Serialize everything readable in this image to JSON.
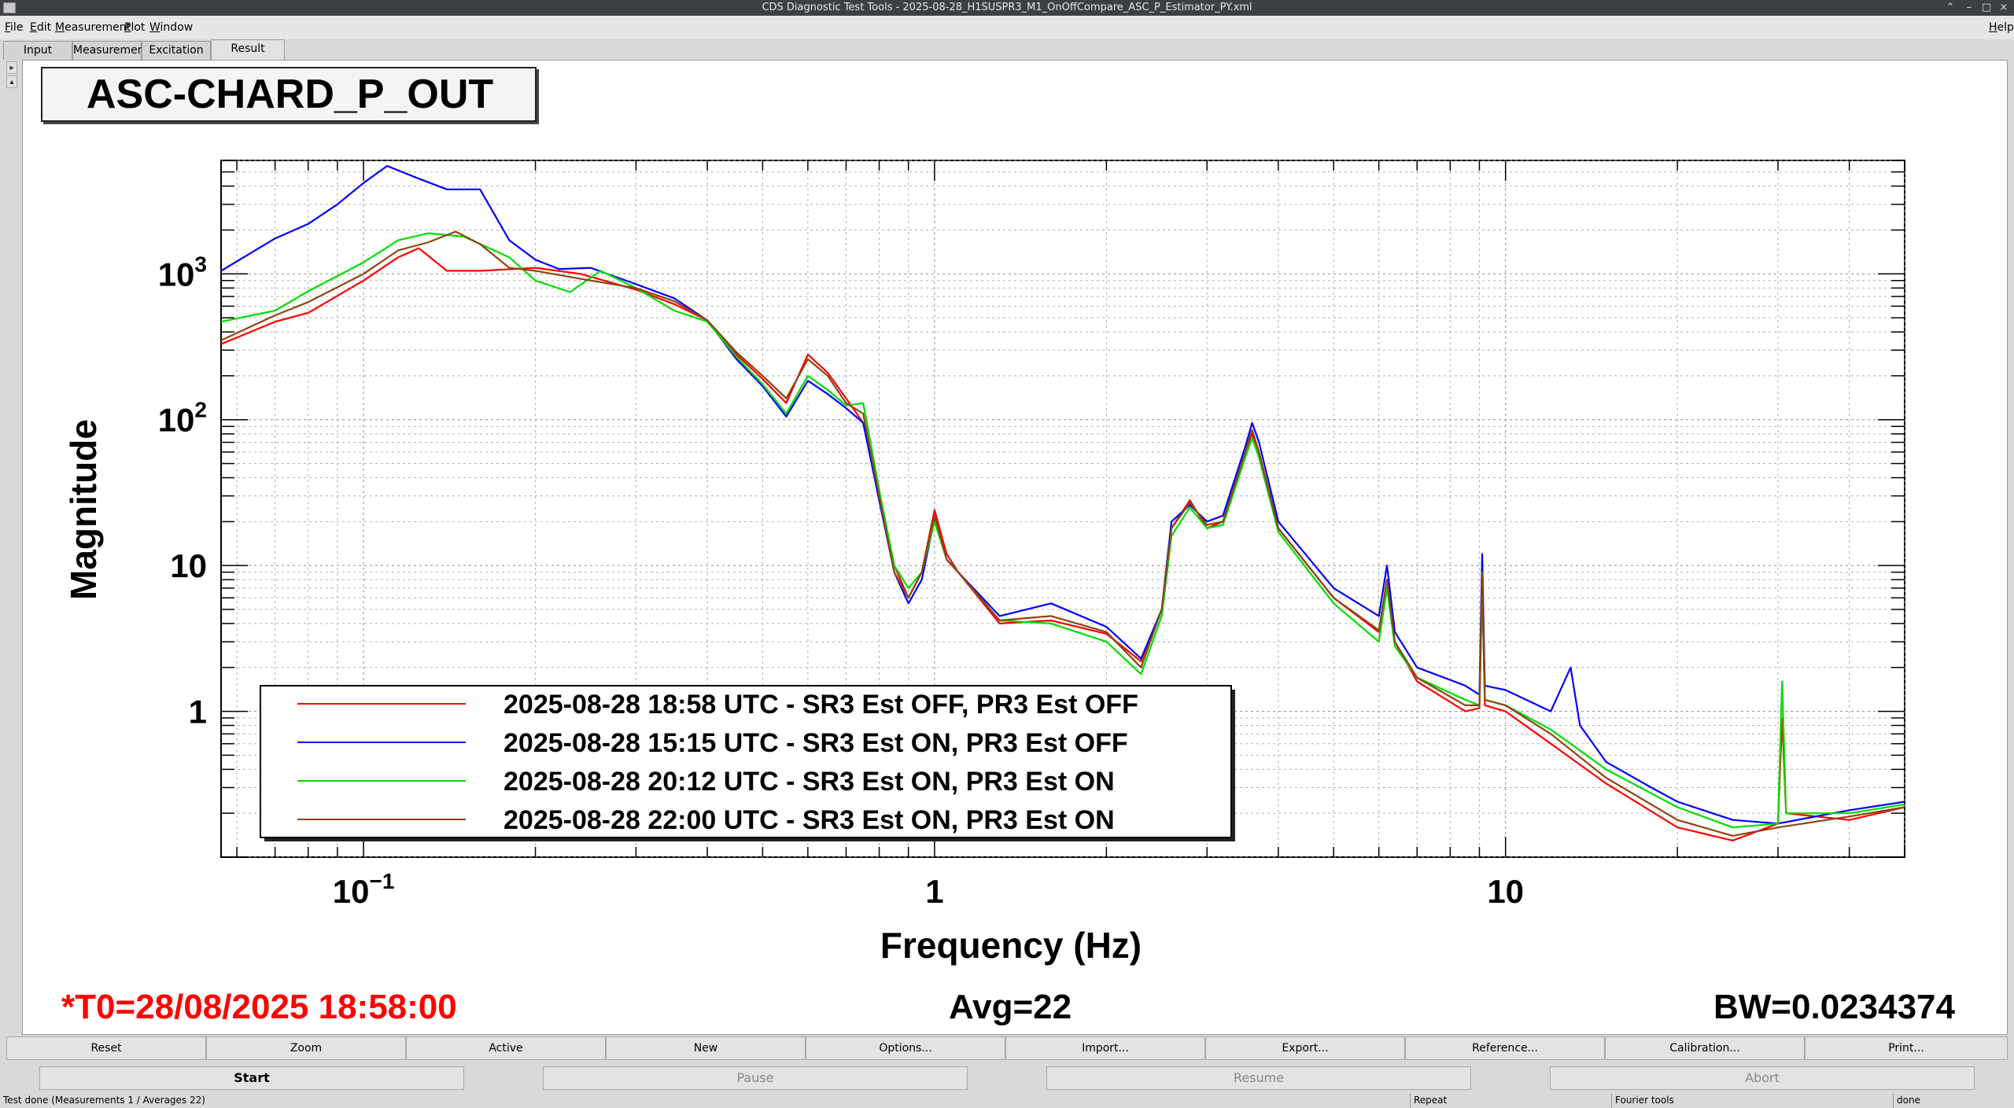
{
  "window": {
    "title": "CDS Diagnostic Test Tools - 2025-08-28_H1SUSPR3_M1_OnOffCompare_ASC_P_Estimator_PY.xml",
    "minimize": "–",
    "maximize": "□",
    "close": "×"
  },
  "menu": {
    "file": "File",
    "edit": "Edit",
    "measurement": "Measurement",
    "plot": "Plot",
    "window": "Window",
    "help": "Help"
  },
  "tabs": [
    "Input",
    "Measurement",
    "Excitation",
    "Result"
  ],
  "active_tab": "Result",
  "plot_title": "ASC-CHARD_P_OUT",
  "chart_data": {
    "type": "line",
    "xscale": "log",
    "yscale": "log",
    "xlabel": "Frequency (Hz)",
    "ylabel": "Magnitude",
    "xlim": [
      0.0563,
      50
    ],
    "ylim": [
      0.1,
      6000
    ],
    "x_ticks": [
      {
        "value": 0.1,
        "label": "10",
        "sup": "−1"
      },
      {
        "value": 1,
        "label": "1",
        "sup": ""
      },
      {
        "value": 10,
        "label": "10",
        "sup": ""
      }
    ],
    "y_ticks": [
      {
        "value": 1,
        "label": "1",
        "sup": ""
      },
      {
        "value": 10,
        "label": "10",
        "sup": ""
      },
      {
        "value": 100,
        "label": "10",
        "sup": "2"
      },
      {
        "value": 1000,
        "label": "10",
        "sup": "3"
      }
    ],
    "grid": true,
    "legend_position": "bottom-left",
    "series": [
      {
        "name": "2025-08-28 18:58 UTC - SR3 Est OFF, PR3 Est OFF",
        "color": "#ff0000",
        "points": [
          [
            0.0563,
            330
          ],
          [
            0.07,
            470
          ],
          [
            0.08,
            540
          ],
          [
            0.1,
            900
          ],
          [
            0.115,
            1300
          ],
          [
            0.125,
            1500
          ],
          [
            0.14,
            1050
          ],
          [
            0.16,
            1050
          ],
          [
            0.2,
            1100
          ],
          [
            0.24,
            1000
          ],
          [
            0.3,
            780
          ],
          [
            0.35,
            620
          ],
          [
            0.4,
            480
          ],
          [
            0.45,
            280
          ],
          [
            0.5,
            190
          ],
          [
            0.55,
            130
          ],
          [
            0.6,
            280
          ],
          [
            0.65,
            210
          ],
          [
            0.7,
            140
          ],
          [
            0.75,
            95
          ],
          [
            0.8,
            30
          ],
          [
            0.85,
            10
          ],
          [
            0.9,
            6
          ],
          [
            0.95,
            9
          ],
          [
            1.0,
            24
          ],
          [
            1.05,
            12
          ],
          [
            1.1,
            9
          ],
          [
            1.3,
            4.0
          ],
          [
            1.6,
            4.2
          ],
          [
            2.0,
            3.4
          ],
          [
            2.3,
            2.2
          ],
          [
            2.5,
            5
          ],
          [
            2.6,
            18
          ],
          [
            2.8,
            28
          ],
          [
            3.0,
            18
          ],
          [
            3.2,
            20
          ],
          [
            3.5,
            60
          ],
          [
            3.6,
            80
          ],
          [
            3.7,
            60
          ],
          [
            4.0,
            18
          ],
          [
            5.0,
            6
          ],
          [
            6.0,
            3.5
          ],
          [
            6.2,
            7
          ],
          [
            6.4,
            3
          ],
          [
            7.0,
            1.6
          ],
          [
            8.5,
            1.0
          ],
          [
            9.0,
            1.05
          ],
          [
            9.1,
            8
          ],
          [
            9.2,
            1.1
          ],
          [
            10,
            1.0
          ],
          [
            12,
            0.6
          ],
          [
            15,
            0.32
          ],
          [
            20,
            0.16
          ],
          [
            25,
            0.13
          ],
          [
            30,
            0.17
          ],
          [
            30.5,
            0.9
          ],
          [
            31,
            0.2
          ],
          [
            40,
            0.18
          ],
          [
            50,
            0.22
          ]
        ]
      },
      {
        "name": "2025-08-28 15:15 UTC - SR3 Est ON, PR3 Est OFF",
        "color": "#0000ff",
        "points": [
          [
            0.0563,
            1050
          ],
          [
            0.07,
            1750
          ],
          [
            0.08,
            2200
          ],
          [
            0.09,
            3000
          ],
          [
            0.1,
            4200
          ],
          [
            0.11,
            5500
          ],
          [
            0.125,
            4500
          ],
          [
            0.14,
            3800
          ],
          [
            0.16,
            3800
          ],
          [
            0.18,
            1700
          ],
          [
            0.2,
            1250
          ],
          [
            0.22,
            1080
          ],
          [
            0.25,
            1100
          ],
          [
            0.3,
            850
          ],
          [
            0.35,
            680
          ],
          [
            0.4,
            480
          ],
          [
            0.45,
            260
          ],
          [
            0.5,
            170
          ],
          [
            0.55,
            105
          ],
          [
            0.6,
            185
          ],
          [
            0.65,
            150
          ],
          [
            0.7,
            120
          ],
          [
            0.75,
            95
          ],
          [
            0.8,
            28
          ],
          [
            0.85,
            9
          ],
          [
            0.9,
            5.5
          ],
          [
            0.95,
            8
          ],
          [
            1.0,
            21
          ],
          [
            1.05,
            11
          ],
          [
            1.1,
            9
          ],
          [
            1.3,
            4.5
          ],
          [
            1.6,
            5.5
          ],
          [
            2.0,
            3.8
          ],
          [
            2.3,
            2.3
          ],
          [
            2.5,
            5
          ],
          [
            2.6,
            20
          ],
          [
            2.8,
            26
          ],
          [
            3.0,
            20
          ],
          [
            3.2,
            22
          ],
          [
            3.5,
            65
          ],
          [
            3.6,
            95
          ],
          [
            3.7,
            70
          ],
          [
            4.0,
            20
          ],
          [
            5.0,
            7
          ],
          [
            6.0,
            4.5
          ],
          [
            6.2,
            10
          ],
          [
            6.4,
            3.5
          ],
          [
            7.0,
            2.0
          ],
          [
            8.5,
            1.5
          ],
          [
            9.0,
            1.3
          ],
          [
            9.1,
            12
          ],
          [
            9.2,
            1.5
          ],
          [
            10,
            1.4
          ],
          [
            12,
            1.0
          ],
          [
            13,
            2
          ],
          [
            13.5,
            0.8
          ],
          [
            15,
            0.45
          ],
          [
            18,
            0.3
          ],
          [
            20,
            0.24
          ],
          [
            25,
            0.18
          ],
          [
            30,
            0.17
          ],
          [
            40,
            0.21
          ],
          [
            50,
            0.24
          ]
        ]
      },
      {
        "name": "2025-08-28 20:12 UTC - SR3 Est ON, PR3 Est ON",
        "color": "#00dd00",
        "points": [
          [
            0.0563,
            470
          ],
          [
            0.07,
            560
          ],
          [
            0.08,
            760
          ],
          [
            0.1,
            1200
          ],
          [
            0.115,
            1700
          ],
          [
            0.13,
            1900
          ],
          [
            0.15,
            1800
          ],
          [
            0.18,
            1300
          ],
          [
            0.2,
            900
          ],
          [
            0.23,
            750
          ],
          [
            0.26,
            1050
          ],
          [
            0.3,
            800
          ],
          [
            0.35,
            560
          ],
          [
            0.4,
            470
          ],
          [
            0.45,
            270
          ],
          [
            0.5,
            175
          ],
          [
            0.55,
            110
          ],
          [
            0.6,
            200
          ],
          [
            0.65,
            160
          ],
          [
            0.7,
            125
          ],
          [
            0.75,
            130
          ],
          [
            0.8,
            33
          ],
          [
            0.85,
            10
          ],
          [
            0.9,
            7
          ],
          [
            0.95,
            9
          ],
          [
            1.0,
            20
          ],
          [
            1.05,
            11
          ],
          [
            1.1,
            9
          ],
          [
            1.3,
            4.2
          ],
          [
            1.6,
            4.0
          ],
          [
            2.0,
            3.0
          ],
          [
            2.3,
            1.8
          ],
          [
            2.5,
            4.5
          ],
          [
            2.6,
            16
          ],
          [
            2.8,
            25
          ],
          [
            3.0,
            18
          ],
          [
            3.2,
            19
          ],
          [
            3.5,
            55
          ],
          [
            3.6,
            75
          ],
          [
            3.7,
            55
          ],
          [
            4.0,
            17
          ],
          [
            5.0,
            5.5
          ],
          [
            6.0,
            3.0
          ],
          [
            6.2,
            7
          ],
          [
            6.4,
            2.8
          ],
          [
            7.0,
            1.7
          ],
          [
            8.5,
            1.2
          ],
          [
            9.0,
            1.1
          ],
          [
            9.1,
            7
          ],
          [
            9.2,
            1.2
          ],
          [
            10,
            1.1
          ],
          [
            12,
            0.75
          ],
          [
            15,
            0.4
          ],
          [
            20,
            0.22
          ],
          [
            25,
            0.16
          ],
          [
            30,
            0.17
          ],
          [
            30.5,
            1.6
          ],
          [
            31,
            0.2
          ],
          [
            40,
            0.2
          ],
          [
            50,
            0.23
          ]
        ]
      },
      {
        "name": "2025-08-28 22:00 UTC - SR3 Est ON, PR3 Est ON",
        "color": "#8b4513",
        "points": [
          [
            0.0563,
            350
          ],
          [
            0.07,
            520
          ],
          [
            0.08,
            640
          ],
          [
            0.1,
            1000
          ],
          [
            0.115,
            1450
          ],
          [
            0.13,
            1650
          ],
          [
            0.145,
            1950
          ],
          [
            0.16,
            1600
          ],
          [
            0.18,
            1100
          ],
          [
            0.2,
            1050
          ],
          [
            0.25,
            900
          ],
          [
            0.3,
            800
          ],
          [
            0.35,
            650
          ],
          [
            0.4,
            480
          ],
          [
            0.45,
            290
          ],
          [
            0.5,
            200
          ],
          [
            0.55,
            140
          ],
          [
            0.6,
            260
          ],
          [
            0.65,
            200
          ],
          [
            0.7,
            130
          ],
          [
            0.75,
            110
          ],
          [
            0.8,
            30
          ],
          [
            0.85,
            9
          ],
          [
            0.9,
            6
          ],
          [
            0.95,
            9
          ],
          [
            1.0,
            22
          ],
          [
            1.05,
            11
          ],
          [
            1.1,
            9
          ],
          [
            1.3,
            4.2
          ],
          [
            1.6,
            4.5
          ],
          [
            2.0,
            3.5
          ],
          [
            2.3,
            2.0
          ],
          [
            2.5,
            5
          ],
          [
            2.6,
            18
          ],
          [
            2.8,
            27
          ],
          [
            3.0,
            19
          ],
          [
            3.2,
            20
          ],
          [
            3.5,
            60
          ],
          [
            3.6,
            85
          ],
          [
            3.7,
            60
          ],
          [
            4.0,
            18
          ],
          [
            5.0,
            6
          ],
          [
            6.0,
            3.6
          ],
          [
            6.2,
            8
          ],
          [
            6.4,
            3.0
          ],
          [
            7.0,
            1.7
          ],
          [
            8.5,
            1.1
          ],
          [
            9.0,
            1.1
          ],
          [
            9.1,
            9
          ],
          [
            9.2,
            1.2
          ],
          [
            10,
            1.1
          ],
          [
            12,
            0.7
          ],
          [
            15,
            0.35
          ],
          [
            20,
            0.18
          ],
          [
            25,
            0.14
          ],
          [
            30,
            0.16
          ],
          [
            40,
            0.19
          ],
          [
            50,
            0.22
          ]
        ]
      }
    ]
  },
  "info": {
    "t0": "*T0=28/08/2025 18:58:00",
    "avg": "Avg=22",
    "bw": "BW=0.0234374"
  },
  "buttons": [
    "Reset",
    "Zoom",
    "Active",
    "New",
    "Options...",
    "Import...",
    "Export...",
    "Reference...",
    "Calibration...",
    "Print..."
  ],
  "controls": {
    "start": "Start",
    "pause": "Pause",
    "resume": "Resume",
    "abort": "Abort"
  },
  "status": {
    "message": "Test done (Measurements 1 / Averages 22)",
    "repeat": "Repeat",
    "tools": "Fourier tools",
    "state": "done"
  }
}
